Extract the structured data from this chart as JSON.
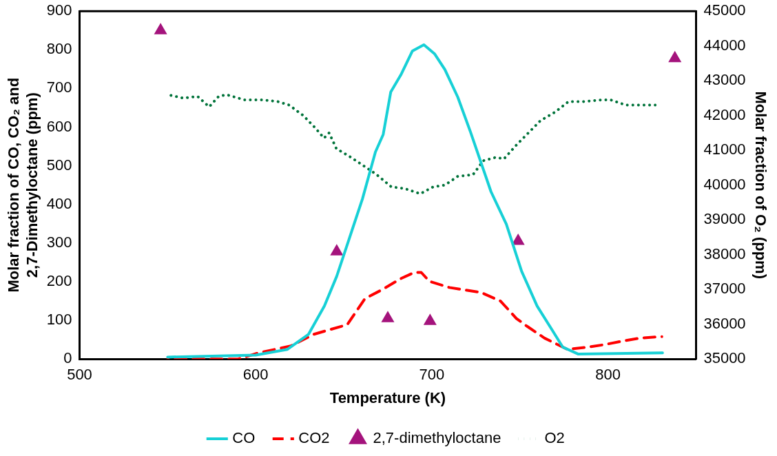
{
  "chart_data": {
    "type": "line",
    "xlabel": "Temperature (K)",
    "ylabel": "Molar fraction of CO, CO₂ and 2,7-Dimethyloctane (ppm)",
    "y2label": "Molar fraction of O₂ (ppm)",
    "xlim": [
      500,
      850
    ],
    "xticks": [
      500,
      600,
      700,
      800
    ],
    "ylim": [
      0,
      900
    ],
    "yticks": [
      0,
      100,
      200,
      300,
      400,
      500,
      600,
      700,
      800,
      900
    ],
    "y2lim": [
      35000,
      45000
    ],
    "y2ticks": [
      35000,
      36000,
      37000,
      38000,
      39000,
      40000,
      41000,
      42000,
      43000,
      44000,
      45000
    ],
    "grid": false,
    "legend": "bottom",
    "series": [
      {
        "name": "CO",
        "line_style": "solid",
        "color": "#17d0d6",
        "x": [
          550,
          600,
          618,
          630,
          639,
          646,
          653,
          660.6,
          668,
          672.4,
          676.7,
          682.4,
          689,
          695.5,
          701.5,
          707.4,
          714.7,
          722,
          727.8,
          733.6,
          742.3,
          751,
          759.8,
          768.6,
          774.3,
          783,
          831
        ],
        "values": [
          5,
          10,
          25,
          64,
          137,
          214,
          310,
          414,
          536,
          581,
          691,
          735,
          797,
          813,
          790,
          749,
          678,
          587,
          510,
          433,
          349,
          227,
          137,
          73,
          31,
          13,
          16
        ]
      },
      {
        "name": "CO2",
        "line_style": "dashed",
        "color": "#ff0000",
        "x": [
          550,
          590,
          601,
          620,
          633,
          652,
          662,
          672,
          682.4,
          690,
          694,
          698.6,
          710,
          728,
          739,
          748,
          754,
          764,
          777,
          789,
          797.7,
          809,
          818,
          830.6
        ],
        "values": [
          0,
          0,
          15,
          34,
          64,
          89,
          156,
          180,
          208,
          224,
          224,
          201,
          185,
          172,
          150,
          105,
          85,
          54,
          25,
          31,
          37,
          47,
          54,
          58
        ]
      },
      {
        "name": "2,7-dimethyloctane",
        "type": "scatter",
        "marker": "triangle",
        "color": "#a4137c",
        "x": [
          546,
          646,
          675,
          699,
          749,
          838
        ],
        "values": [
          850,
          278,
          105,
          98,
          305,
          778
        ]
      },
      {
        "name": "O2",
        "axis": "y2",
        "line_style": "dotted",
        "color": "#00733a",
        "x": [
          550,
          559,
          567,
          573.6,
          579,
          583.4,
          593.6,
          604,
          612.6,
          619,
          627,
          633.7,
          638.8,
          641.7,
          645.8,
          654,
          661.4,
          668.7,
          677,
          684.6,
          693.5,
          700.8,
          707.4,
          714.7,
          723.4,
          729.2,
          736.5,
          740.9,
          748,
          755.8,
          761.6,
          770,
          777.6,
          786,
          796.6,
          801.5,
          810.2,
          818,
          826.8
        ],
        "values": [
          42600,
          42500,
          42550,
          42250,
          42550,
          42600,
          42450,
          42450,
          42400,
          42300,
          42000,
          41650,
          41350,
          41500,
          41050,
          40800,
          40550,
          40300,
          39950,
          39900,
          39750,
          39950,
          40000,
          40250,
          40300,
          40700,
          40800,
          40750,
          41150,
          41550,
          41850,
          42100,
          42400,
          42400,
          42450,
          42450,
          42300,
          42300,
          42300
        ]
      }
    ]
  }
}
